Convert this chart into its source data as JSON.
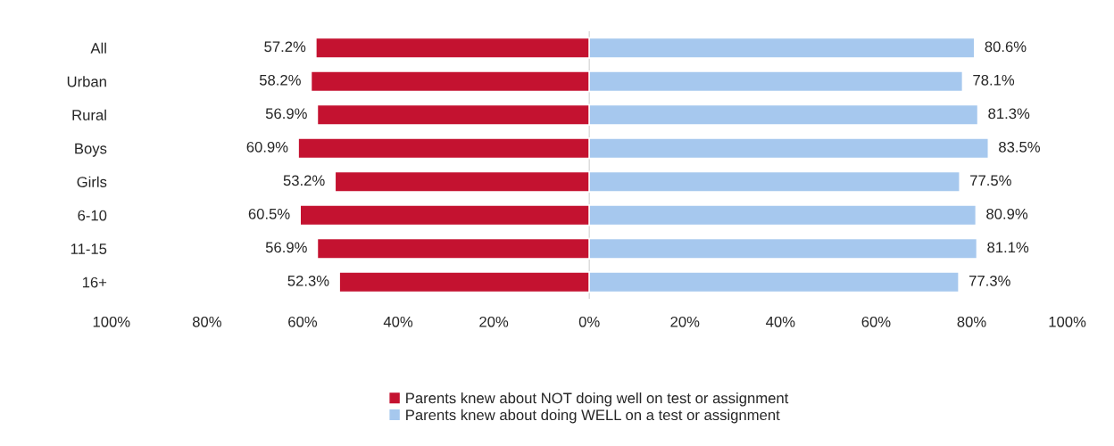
{
  "chart_data": {
    "type": "bar",
    "orientation": "horizontal",
    "categories": [
      "All",
      "Urban",
      "Rural",
      "Boys",
      "Girls",
      "6-10",
      "11-15",
      "16+"
    ],
    "series": [
      {
        "name": "Parents knew about NOT doing well on test or assignment",
        "color": "#c41230",
        "base": [
          -57.2,
          -58.2,
          -56.9,
          -60.9,
          -53.2,
          -60.5,
          -56.9,
          -52.3
        ],
        "values": [
          57.2,
          58.2,
          56.9,
          60.9,
          53.2,
          60.5,
          56.9,
          52.3
        ],
        "value_labels": [
          "57.2%",
          "58.2%",
          "56.9%",
          "60.9%",
          "53.2%",
          "60.5%",
          "56.9%",
          "52.3%"
        ]
      },
      {
        "name": "Parents knew about doing WELL on a test or assignment",
        "color": "#a6c8ee",
        "values": [
          80.6,
          78.1,
          81.3,
          83.5,
          77.5,
          80.9,
          81.1,
          77.3
        ],
        "value_labels": [
          "80.6%",
          "78.1%",
          "81.3%",
          "83.5%",
          "77.5%",
          "80.9%",
          "81.1%",
          "77.3%"
        ]
      }
    ],
    "xlim": [
      -100,
      100
    ],
    "xticks": [
      {
        "value": -100,
        "label": "100%"
      },
      {
        "value": -80,
        "label": "80%"
      },
      {
        "value": -60,
        "label": "60%"
      },
      {
        "value": -40,
        "label": "40%"
      },
      {
        "value": -20,
        "label": "20%"
      },
      {
        "value": 0,
        "label": "0%"
      },
      {
        "value": 20,
        "label": "20%"
      },
      {
        "value": 40,
        "label": "40%"
      },
      {
        "value": 60,
        "label": "60%"
      },
      {
        "value": 80,
        "label": "80%"
      },
      {
        "value": 100,
        "label": "100%"
      }
    ],
    "ref_lines": [
      {
        "axis": "x",
        "value": 0,
        "color": "#d9d9d9"
      }
    ],
    "grid": false,
    "legend": "bottom"
  }
}
